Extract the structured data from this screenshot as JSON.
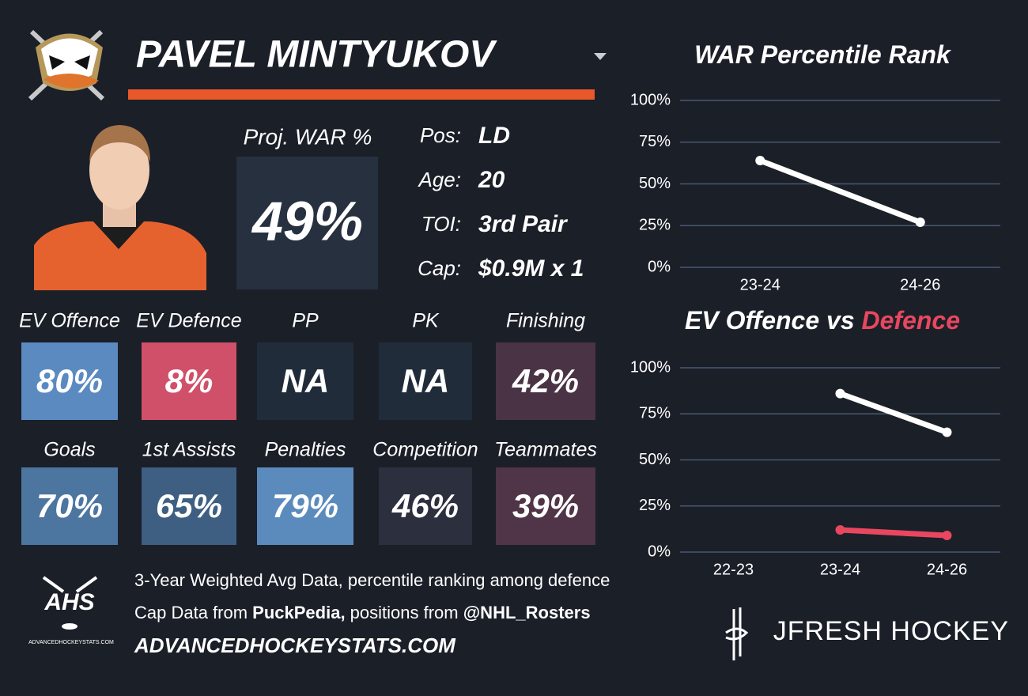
{
  "header": {
    "player_name": "PAVEL MINTYUKOV"
  },
  "summary": {
    "proj_war_label": "Proj. WAR %",
    "proj_war_value": "49%",
    "info": [
      {
        "label": "Pos:",
        "value": "LD"
      },
      {
        "label": "Age:",
        "value": "20"
      },
      {
        "label": "TOI:",
        "value": "3rd Pair"
      },
      {
        "label": "Cap:",
        "value": "$0.9M x 1"
      }
    ]
  },
  "tiles": [
    {
      "label": "EV Offence",
      "value": "80%",
      "color": "#5a8ac0"
    },
    {
      "label": "EV Defence",
      "value": "8%",
      "color": "#d05069"
    },
    {
      "label": "PP",
      "value": "NA",
      "color": "#212c3b"
    },
    {
      "label": "PK",
      "value": "NA",
      "color": "#212c3b"
    },
    {
      "label": "Finishing",
      "value": "42%",
      "color": "#4a3344"
    },
    {
      "label": "Goals",
      "value": "70%",
      "color": "#4c75a0"
    },
    {
      "label": "1st Assists",
      "value": "65%",
      "color": "#3e5f82"
    },
    {
      "label": "Penalties",
      "value": "79%",
      "color": "#5b8bbd"
    },
    {
      "label": "Competition",
      "value": "46%",
      "color": "#2b2f3e"
    },
    {
      "label": "Teammates",
      "value": "39%",
      "color": "#503447"
    }
  ],
  "footer": {
    "line1": "3-Year Weighted Avg Data, percentile ranking among defence",
    "line2": [
      "Cap Data from ",
      "PuckPedia,",
      " positions from ",
      "@NHL_Rosters"
    ],
    "url": "ADVANCEDHOCKEYSTATS.COM",
    "ahs_logo": "AHS",
    "ahs_logo_caption": "ADVANCEDHOCKEYSTATS.COM",
    "brand": "JFRESH HOCKEY"
  },
  "chart_data": [
    {
      "type": "line",
      "title": "WAR Percentile Rank",
      "categories": [
        "23-24",
        "24-26"
      ],
      "values": [
        64,
        27
      ],
      "color": "#ffffff",
      "ylim": [
        0,
        100
      ],
      "yticks": [
        {
          "value": 0,
          "label": "0%"
        },
        {
          "value": 25,
          "label": "25%"
        },
        {
          "value": 50,
          "label": "50%"
        },
        {
          "value": 75,
          "label": "75%"
        },
        {
          "value": 100,
          "label": "100%"
        }
      ],
      "grid": true
    },
    {
      "type": "line",
      "title": "EV Offence vs",
      "title_highlight": "Defence",
      "categories": [
        "22-23",
        "23-24",
        "24-26"
      ],
      "series": [
        {
          "color": "#ffffff",
          "values": [
            null,
            86,
            65
          ]
        },
        {
          "color": "#e8475f",
          "values": [
            null,
            12,
            9
          ]
        }
      ],
      "ylim": [
        0,
        100
      ],
      "yticks": [
        {
          "value": 0,
          "label": "0%"
        },
        {
          "value": 25,
          "label": "25%"
        },
        {
          "value": 50,
          "label": "50%"
        },
        {
          "value": 75,
          "label": "75%"
        },
        {
          "value": 100,
          "label": "100%"
        }
      ],
      "grid": true
    }
  ]
}
